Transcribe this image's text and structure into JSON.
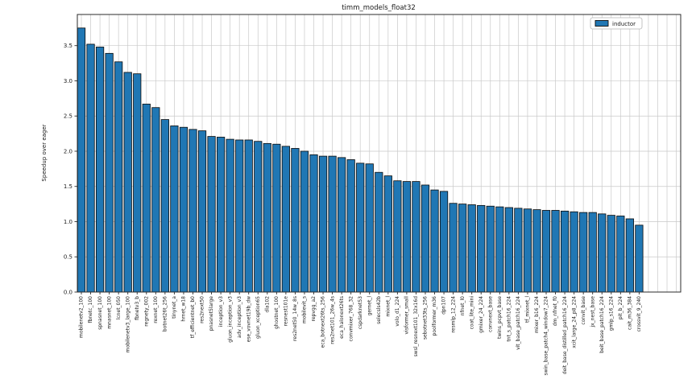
{
  "figure": {
    "background": "#ffffff"
  },
  "chart_data": {
    "type": "bar",
    "title": "timm_models_float32",
    "xlabel": "",
    "ylabel": "Speedup over eager",
    "ylim": [
      0,
      3.94
    ],
    "yticks": [
      0.0,
      0.5,
      1.0,
      1.5,
      2.0,
      2.5,
      3.0,
      3.5
    ],
    "grid": true,
    "legend": {
      "label": "inductor",
      "position": "upper right"
    },
    "bar_color": "#2077b4",
    "bar_edge_color": "#0a0a0a",
    "grid_color": "#c9c9c9",
    "spine_color": "#2b2b2b",
    "categories": [
      "mobilenetv2_100",
      "fbnetc_100",
      "spnasnet_100",
      "mnasnet_100",
      "lcnet_050",
      "mobilenetv3_large_100",
      "fbnetv3_b",
      "regnety_002",
      "rexnet_100",
      "botnet26t_256",
      "tinynet_a",
      "hrnet_w18",
      "tf_efficientnet_b0",
      "res2next50",
      "pnasnet5large",
      "inception_v3",
      "gluon_inception_v3",
      "adv_inception_v3",
      "ese_vovnet19b_dw",
      "gluon_xception65",
      "dla102",
      "ghostnet_100",
      "resnest101e",
      "res2net50_14w_8s",
      "mobilevit_s",
      "repvgg_a2",
      "eca_botnext26ts_256",
      "res2net101_26w_4s",
      "eca_halonext26ts",
      "convmixer_768_32",
      "cspdarknet53",
      "gernet_l",
      "selecsls42b",
      "mixnet_l",
      "volo_d1_224",
      "visformer_small",
      "swsl_resnext101_32x16d",
      "sebotnet33ts_256",
      "poolformer_m36",
      "dpn107",
      "resmlp_12_224",
      "nfnet_l0",
      "coat_lite_mini",
      "gmixer_24_224",
      "convnext_base",
      "twins_pcpvt_base",
      "tnt_s_patch16_224",
      "vit_base_patch16_224",
      "tf_mixnet_l",
      "mixer_b16_224",
      "swin_base_patch4_window7_224",
      "dm_nfnet_f0",
      "deit_base_distilled_patch16_224",
      "xcit_large_24_p8_224",
      "convit_base",
      "jx_nest_base",
      "beit_base_patch16_224",
      "gmlp_s16_224",
      "pit_b_224",
      "cait_m36_384",
      "crossvit_9_240"
    ],
    "values": [
      3.75,
      3.52,
      3.48,
      3.39,
      3.27,
      3.12,
      3.1,
      2.67,
      2.62,
      2.45,
      2.36,
      2.34,
      2.31,
      2.29,
      2.21,
      2.2,
      2.17,
      2.16,
      2.16,
      2.14,
      2.11,
      2.1,
      2.07,
      2.04,
      2.0,
      1.95,
      1.93,
      1.93,
      1.91,
      1.88,
      1.83,
      1.82,
      1.7,
      1.65,
      1.58,
      1.57,
      1.57,
      1.52,
      1.45,
      1.43,
      1.26,
      1.25,
      1.24,
      1.23,
      1.22,
      1.21,
      1.2,
      1.19,
      1.18,
      1.17,
      1.16,
      1.16,
      1.15,
      1.14,
      1.13,
      1.13,
      1.11,
      1.09,
      1.08,
      1.04,
      0.95
    ]
  }
}
